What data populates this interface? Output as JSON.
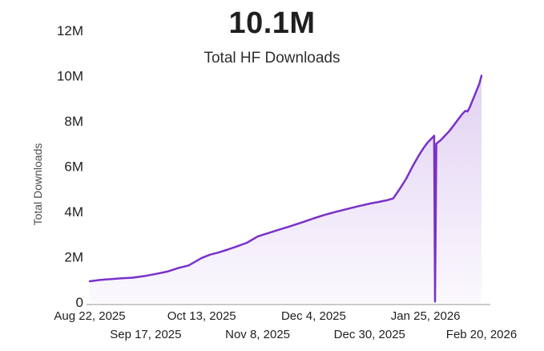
{
  "chart_data": {
    "type": "area",
    "title": "10.1M",
    "subtitle": "Total HF Downloads",
    "ylabel": "Total Downloads",
    "xlabel": "",
    "ylim": [
      0,
      12
    ],
    "y_unit": "millions",
    "grid": "off",
    "legend": "none",
    "yticks": {
      "values": [
        0,
        2,
        4,
        6,
        8,
        10,
        12
      ],
      "labels": [
        "0",
        "2M",
        "4M",
        "6M",
        "8M",
        "10M",
        "12M"
      ]
    },
    "xticks": {
      "day_offsets": [
        0,
        26,
        52,
        78,
        104,
        130,
        156,
        182
      ],
      "labels": [
        "Aug 22, 2025",
        "Sep 17, 2025",
        "Oct 13, 2025",
        "Nov 8, 2025",
        "Dec 4, 2025",
        "Dec 30, 2025",
        "Jan 25, 2026",
        "Feb 20, 2026"
      ],
      "stagger": "alternate-two-rows"
    },
    "x_range_days": [
      0,
      182
    ],
    "colors": {
      "line": "#7A30C9",
      "fill_top": "rgba(122,48,201,0.22)",
      "fill_bottom": "rgba(122,48,201,0.03)",
      "axis_line": "#c9c9c9",
      "title_text": "#1f1f1f",
      "tick_text": "#1f1f1f"
    },
    "series": [
      {
        "name": "Total HF Downloads",
        "points_day_value_millions": [
          [
            0,
            0.92
          ],
          [
            5,
            0.98
          ],
          [
            10,
            1.02
          ],
          [
            15,
            1.05
          ],
          [
            20,
            1.08
          ],
          [
            26,
            1.16
          ],
          [
            31,
            1.25
          ],
          [
            36,
            1.35
          ],
          [
            41,
            1.5
          ],
          [
            46,
            1.62
          ],
          [
            52,
            1.95
          ],
          [
            56,
            2.1
          ],
          [
            60,
            2.2
          ],
          [
            64,
            2.32
          ],
          [
            68,
            2.45
          ],
          [
            73,
            2.62
          ],
          [
            78,
            2.9
          ],
          [
            83,
            3.05
          ],
          [
            88,
            3.2
          ],
          [
            93,
            3.35
          ],
          [
            98,
            3.5
          ],
          [
            104,
            3.7
          ],
          [
            109,
            3.85
          ],
          [
            114,
            3.98
          ],
          [
            119,
            4.1
          ],
          [
            124,
            4.22
          ],
          [
            130,
            4.35
          ],
          [
            134,
            4.42
          ],
          [
            138,
            4.5
          ],
          [
            141,
            4.58
          ],
          [
            144,
            5.0
          ],
          [
            147,
            5.45
          ],
          [
            150,
            6.0
          ],
          [
            153,
            6.5
          ],
          [
            155,
            6.8
          ],
          [
            157,
            7.05
          ],
          [
            159,
            7.25
          ],
          [
            160,
            7.35
          ],
          [
            160.4,
            0.02
          ],
          [
            161,
            7.0
          ],
          [
            163,
            7.15
          ],
          [
            165,
            7.35
          ],
          [
            167,
            7.55
          ],
          [
            169,
            7.8
          ],
          [
            171,
            8.05
          ],
          [
            173,
            8.3
          ],
          [
            174.5,
            8.45
          ],
          [
            175.5,
            8.42
          ],
          [
            176.5,
            8.6
          ],
          [
            178,
            8.95
          ],
          [
            179.5,
            9.3
          ],
          [
            181,
            9.65
          ],
          [
            182,
            10.0
          ]
        ]
      }
    ]
  }
}
